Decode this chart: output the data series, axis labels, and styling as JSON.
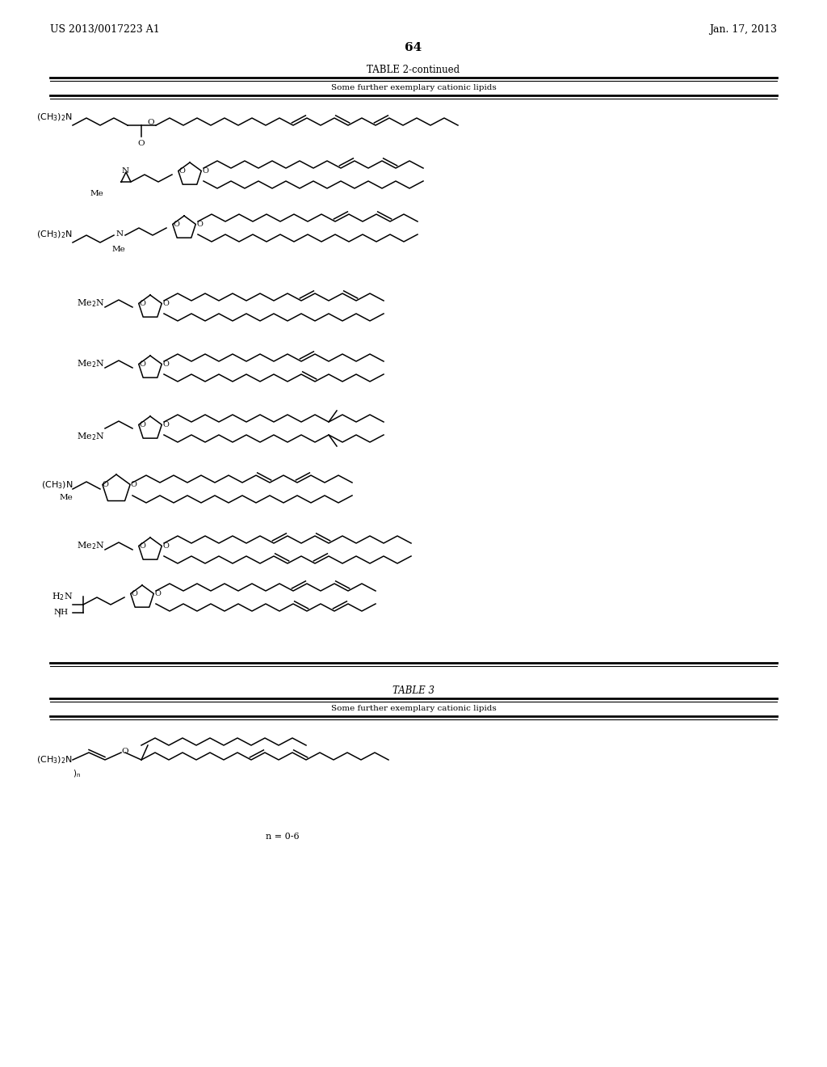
{
  "patent_number": "US 2013/0017223 A1",
  "date": "Jan. 17, 2013",
  "page_number": "64",
  "table2_title": "TABLE 2-continued",
  "table2_subtitle": "Some further exemplary cationic lipids",
  "table3_title": "TABLE 3",
  "table3_subtitle": "Some further exemplary cationic lipids",
  "note": "n = 0-6",
  "bg_color": "#ffffff",
  "text_color": "#000000",
  "line_color": "#000000"
}
